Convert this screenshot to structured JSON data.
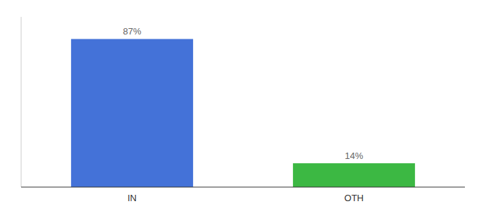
{
  "chart_data": {
    "type": "bar",
    "categories": [
      "IN",
      "OTH"
    ],
    "values": [
      87,
      14
    ],
    "colors": [
      "#4472d8",
      "#3cb843"
    ],
    "value_labels": [
      "87%",
      "14%"
    ],
    "data_labels": true,
    "ylim": [
      0,
      100
    ],
    "tick_labels": "x",
    "grid": false
  }
}
